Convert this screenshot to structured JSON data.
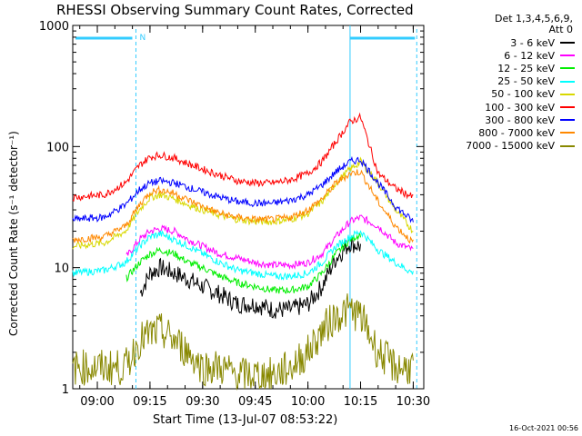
{
  "title": "RHESSI Observing Summary Count Rates, Corrected",
  "legend_header": [
    "Det 1,3,4,5,6,9,",
    "Att 0"
  ],
  "stamp": "16-Oct-2021 00:56",
  "colors": {
    "frame": "#000000",
    "cyan_marker": "#33ccff"
  },
  "marker_label": "N",
  "chart_data": {
    "type": "line",
    "title": "RHESSI Observing Summary Count Rates, Corrected",
    "xlabel": "Start Time (13-Jul-07 08:53:22)",
    "ylabel": "Corrected Count Rate (s⁻¹ detector⁻¹)",
    "yscale": "log",
    "ylim": [
      1,
      1000
    ],
    "xlim_minutes": [
      "08:53",
      "10:33"
    ],
    "x_ticks": [
      "09:00",
      "09:15",
      "09:30",
      "09:45",
      "10:00",
      "10:15",
      "10:30"
    ],
    "y_ticks": [
      "1",
      "10",
      "100",
      "1000"
    ],
    "legend_position": "right",
    "x": [
      "08:53",
      "09:02",
      "09:08",
      "09:12",
      "09:15",
      "09:18",
      "09:22",
      "09:26",
      "09:30",
      "09:35",
      "09:40",
      "09:45",
      "09:50",
      "09:55",
      "10:00",
      "10:04",
      "10:08",
      "10:12",
      "10:15",
      "10:20",
      "10:25",
      "10:30"
    ],
    "series": [
      {
        "name": "3 - 6 keV",
        "color": "#000000",
        "values": [
          null,
          null,
          null,
          6,
          9,
          10,
          9,
          8,
          7,
          6,
          5,
          5,
          4.5,
          4.5,
          5,
          7,
          12,
          16,
          15,
          null,
          null,
          null
        ]
      },
      {
        "name": "6 - 12 keV",
        "color": "#ff00ff",
        "values": [
          null,
          null,
          12,
          17,
          20,
          21,
          20,
          17,
          15,
          13,
          12,
          11,
          10.5,
          10.5,
          11,
          13,
          18,
          24,
          26,
          22,
          16,
          14
        ]
      },
      {
        "name": "12 - 25 keV",
        "color": "#00ee00",
        "values": [
          null,
          null,
          8,
          11,
          13,
          14,
          13,
          11,
          10,
          8.5,
          7.5,
          7,
          6.5,
          6.5,
          7,
          9,
          13,
          17,
          19,
          null,
          null,
          null
        ]
      },
      {
        "name": "25 - 50 keV",
        "color": "#00ffff",
        "values": [
          9,
          9.5,
          11,
          15,
          18,
          19,
          17,
          15,
          13,
          11,
          9.5,
          9,
          8.5,
          8.5,
          9,
          11,
          15,
          18,
          20,
          14,
          11,
          9
        ]
      },
      {
        "name": "50 - 100 keV",
        "color": "#d8d800",
        "values": [
          15,
          16,
          20,
          30,
          38,
          40,
          37,
          33,
          30,
          27,
          25,
          24,
          24,
          25,
          28,
          35,
          50,
          65,
          75,
          50,
          30,
          20
        ]
      },
      {
        "name": "100 - 300 keV",
        "color": "#ff0000",
        "values": [
          38,
          40,
          50,
          70,
          82,
          85,
          80,
          72,
          65,
          58,
          52,
          50,
          50,
          53,
          60,
          75,
          110,
          160,
          175,
          60,
          45,
          38
        ]
      },
      {
        "name": "300 - 800 keV",
        "color": "#0000ff",
        "values": [
          25,
          26,
          33,
          44,
          50,
          52,
          50,
          46,
          42,
          38,
          35,
          34,
          34,
          36,
          40,
          48,
          62,
          75,
          78,
          50,
          32,
          24
        ]
      },
      {
        "name": "800 - 7000 keV",
        "color": "#ff8800",
        "values": [
          17,
          18,
          22,
          33,
          42,
          44,
          41,
          36,
          32,
          28,
          26,
          25,
          25,
          26,
          30,
          37,
          50,
          60,
          62,
          35,
          22,
          16
        ]
      },
      {
        "name": "7000 - 15000 keV",
        "color": "#888800",
        "values": [
          1.5,
          1.5,
          1.5,
          2.5,
          2.8,
          3.0,
          2.5,
          2.0,
          1.5,
          1.5,
          1.3,
          1.3,
          1.3,
          1.5,
          2.0,
          3.0,
          4.0,
          4.5,
          4.0,
          2.0,
          1.5,
          1.5
        ]
      }
    ]
  }
}
